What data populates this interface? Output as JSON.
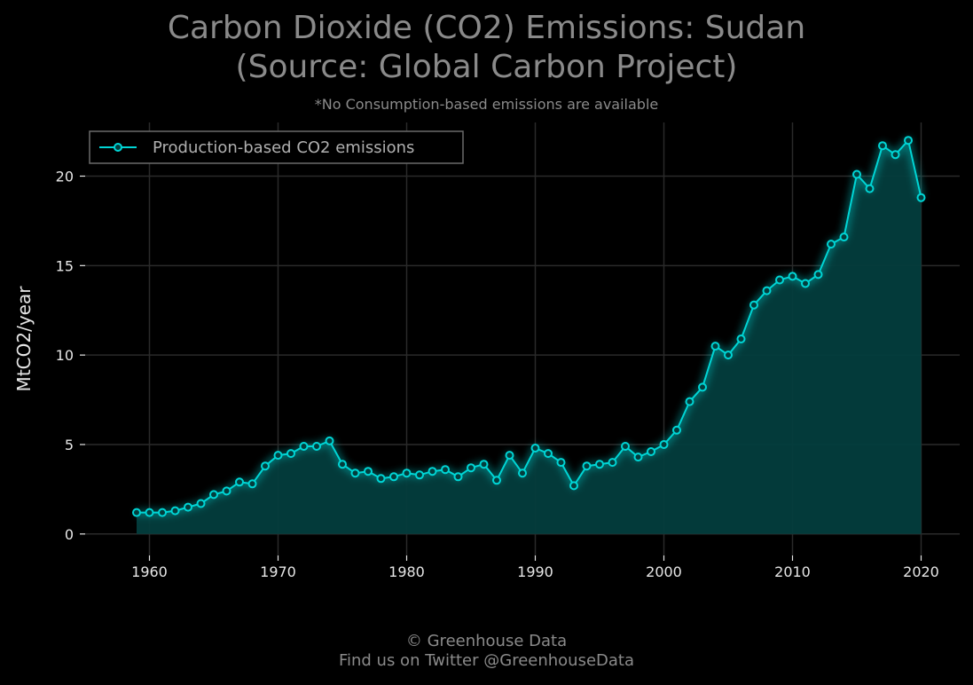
{
  "title_line1": "Carbon Dioxide (CO2) Emissions: Sudan",
  "title_line2": "(Source: Global Carbon Project)",
  "subtitle": "*No Consumption-based emissions are available",
  "footer_line1": "© Greenhouse Data",
  "footer_line2": "Find us on Twitter @GreenhouseData",
  "colors": {
    "background": "#000000",
    "line": "#00d5d5",
    "fill": "#033d3d",
    "grid": "#2a2a2a"
  },
  "chart_data": {
    "type": "area",
    "xlabel": "",
    "ylabel": "MtCO2/year",
    "xlim": [
      1955,
      2023
    ],
    "ylim": [
      -1.2,
      23
    ],
    "xticks": [
      1960,
      1970,
      1980,
      1990,
      2000,
      2010,
      2020
    ],
    "yticks": [
      0,
      5,
      10,
      15,
      20
    ],
    "grid": true,
    "legend": {
      "placement": "top-left",
      "entries": [
        "Production-based CO2 emissions"
      ]
    },
    "series": [
      {
        "name": "Production-based CO2 emissions",
        "x": [
          1959,
          1960,
          1961,
          1962,
          1963,
          1964,
          1965,
          1966,
          1967,
          1968,
          1969,
          1970,
          1971,
          1972,
          1973,
          1974,
          1975,
          1976,
          1977,
          1978,
          1979,
          1980,
          1981,
          1982,
          1983,
          1984,
          1985,
          1986,
          1987,
          1988,
          1989,
          1990,
          1991,
          1992,
          1993,
          1994,
          1995,
          1996,
          1997,
          1998,
          1999,
          2000,
          2001,
          2002,
          2003,
          2004,
          2005,
          2006,
          2007,
          2008,
          2009,
          2010,
          2011,
          2012,
          2013,
          2014,
          2015,
          2016,
          2017,
          2018,
          2019,
          2020
        ],
        "y": [
          1.2,
          1.2,
          1.2,
          1.3,
          1.5,
          1.7,
          2.2,
          2.4,
          2.9,
          2.8,
          3.8,
          4.4,
          4.5,
          4.9,
          4.9,
          5.2,
          3.9,
          3.4,
          3.5,
          3.1,
          3.2,
          3.4,
          3.3,
          3.5,
          3.6,
          3.2,
          3.7,
          3.9,
          3.0,
          4.4,
          3.4,
          4.8,
          4.5,
          4.0,
          2.7,
          3.8,
          3.9,
          4.0,
          4.9,
          4.3,
          4.6,
          5.0,
          5.8,
          7.4,
          8.2,
          10.5,
          10.0,
          10.9,
          12.8,
          13.6,
          14.2,
          14.4,
          14.0,
          14.5,
          16.2,
          16.6,
          20.1,
          19.3,
          21.7,
          21.2,
          22.0,
          18.8
        ]
      }
    ]
  }
}
